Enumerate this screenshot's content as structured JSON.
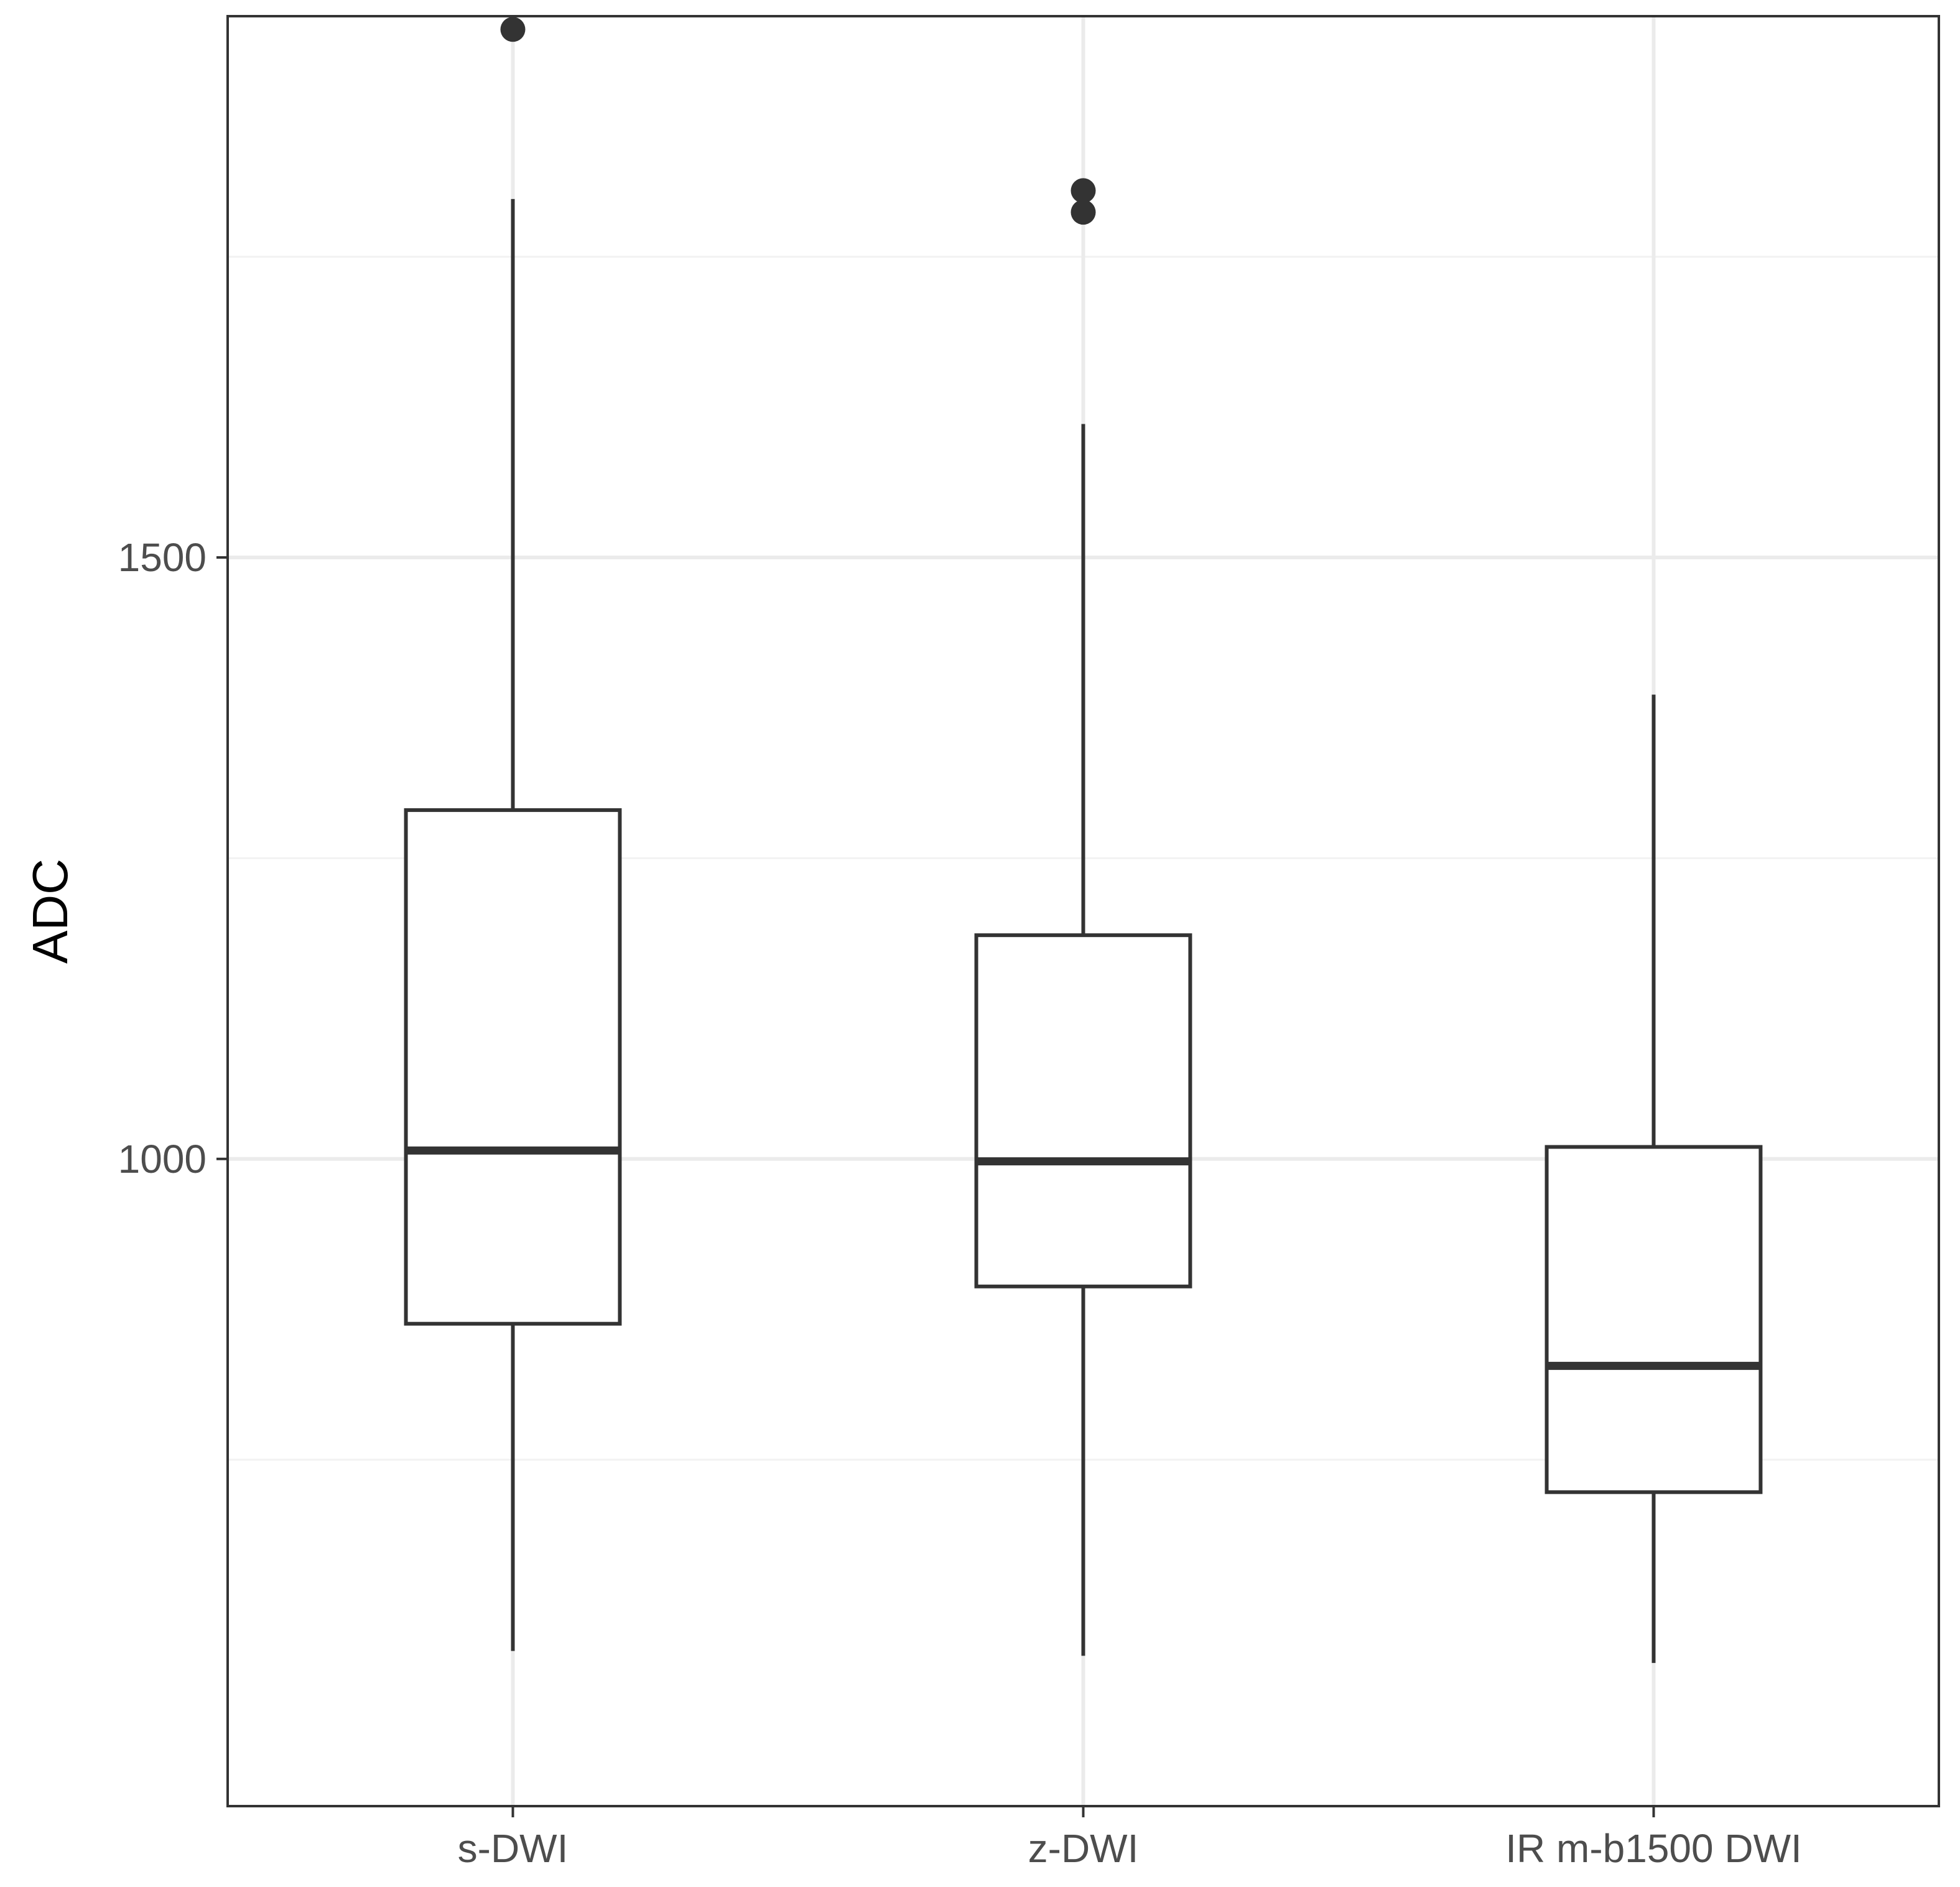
{
  "chart_data": {
    "type": "boxplot",
    "title": "",
    "xlabel": "",
    "ylabel": "ADC",
    "ylim": [
      462,
      1950
    ],
    "yticks": [
      1000,
      1500,
      2000
    ],
    "yminor": [
      750,
      1250,
      1750
    ],
    "grid": true,
    "legend": "none",
    "categories": [
      "s-DWI",
      "z-DWI",
      "IR m-b1500 DWI"
    ],
    "boxes": [
      {
        "category": "s-DWI",
        "whisker_low": 591,
        "q1": 863,
        "median": 1007,
        "q3": 1290,
        "whisker_high": 1798,
        "outliers": [
          1939
        ]
      },
      {
        "category": "z-DWI",
        "whisker_low": 587,
        "q1": 894,
        "median": 998,
        "q3": 1186,
        "whisker_high": 1611,
        "outliers": [
          1805,
          1787
        ]
      },
      {
        "category": "IR m-b1500 DWI",
        "whisker_low": 581,
        "q1": 723,
        "median": 828,
        "q3": 1010,
        "whisker_high": 1386,
        "outliers": []
      }
    ]
  },
  "colors": {
    "background": "#ffffff",
    "grid_major": "#ebebeb",
    "grid_minor": "#f2f2f2",
    "box_stroke": "#333333",
    "panel_border": "#333333",
    "tick_text": "#4d4d4d"
  }
}
